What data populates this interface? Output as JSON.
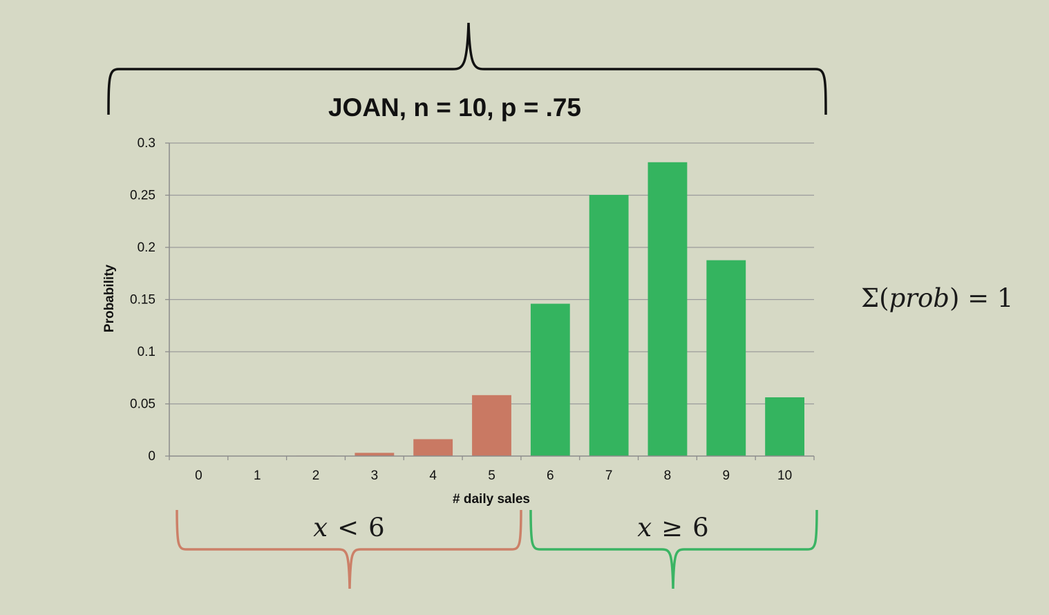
{
  "chart_data": {
    "type": "bar",
    "title": "JOAN, n = 10, p = .75",
    "xlabel": "# daily sales",
    "ylabel": "Probability",
    "categories": [
      "0",
      "1",
      "2",
      "3",
      "4",
      "5",
      "6",
      "7",
      "8",
      "9",
      "10"
    ],
    "values": [
      1e-06,
      3e-05,
      0.0004,
      0.0031,
      0.0162,
      0.0584,
      0.146,
      0.2503,
      0.2816,
      0.1877,
      0.0563
    ],
    "ylim": [
      0,
      0.3
    ],
    "yticks": [
      "0",
      "0.05",
      "0.1",
      "0.15",
      "0.2",
      "0.25",
      "0.3"
    ],
    "grid": true,
    "colors": {
      "below_6": "#c97963",
      "at_least_6": "#34b45f"
    },
    "split_at": 6
  },
  "annotations": {
    "left_brace_label": {
      "var": "x",
      "op": "<",
      "num": "6"
    },
    "right_brace_label": {
      "var": "x",
      "op": "≥",
      "num": "6"
    },
    "sum_label": {
      "sigma": "Σ(",
      "var": "prob",
      "close": ")",
      "rest": " = 1"
    }
  }
}
